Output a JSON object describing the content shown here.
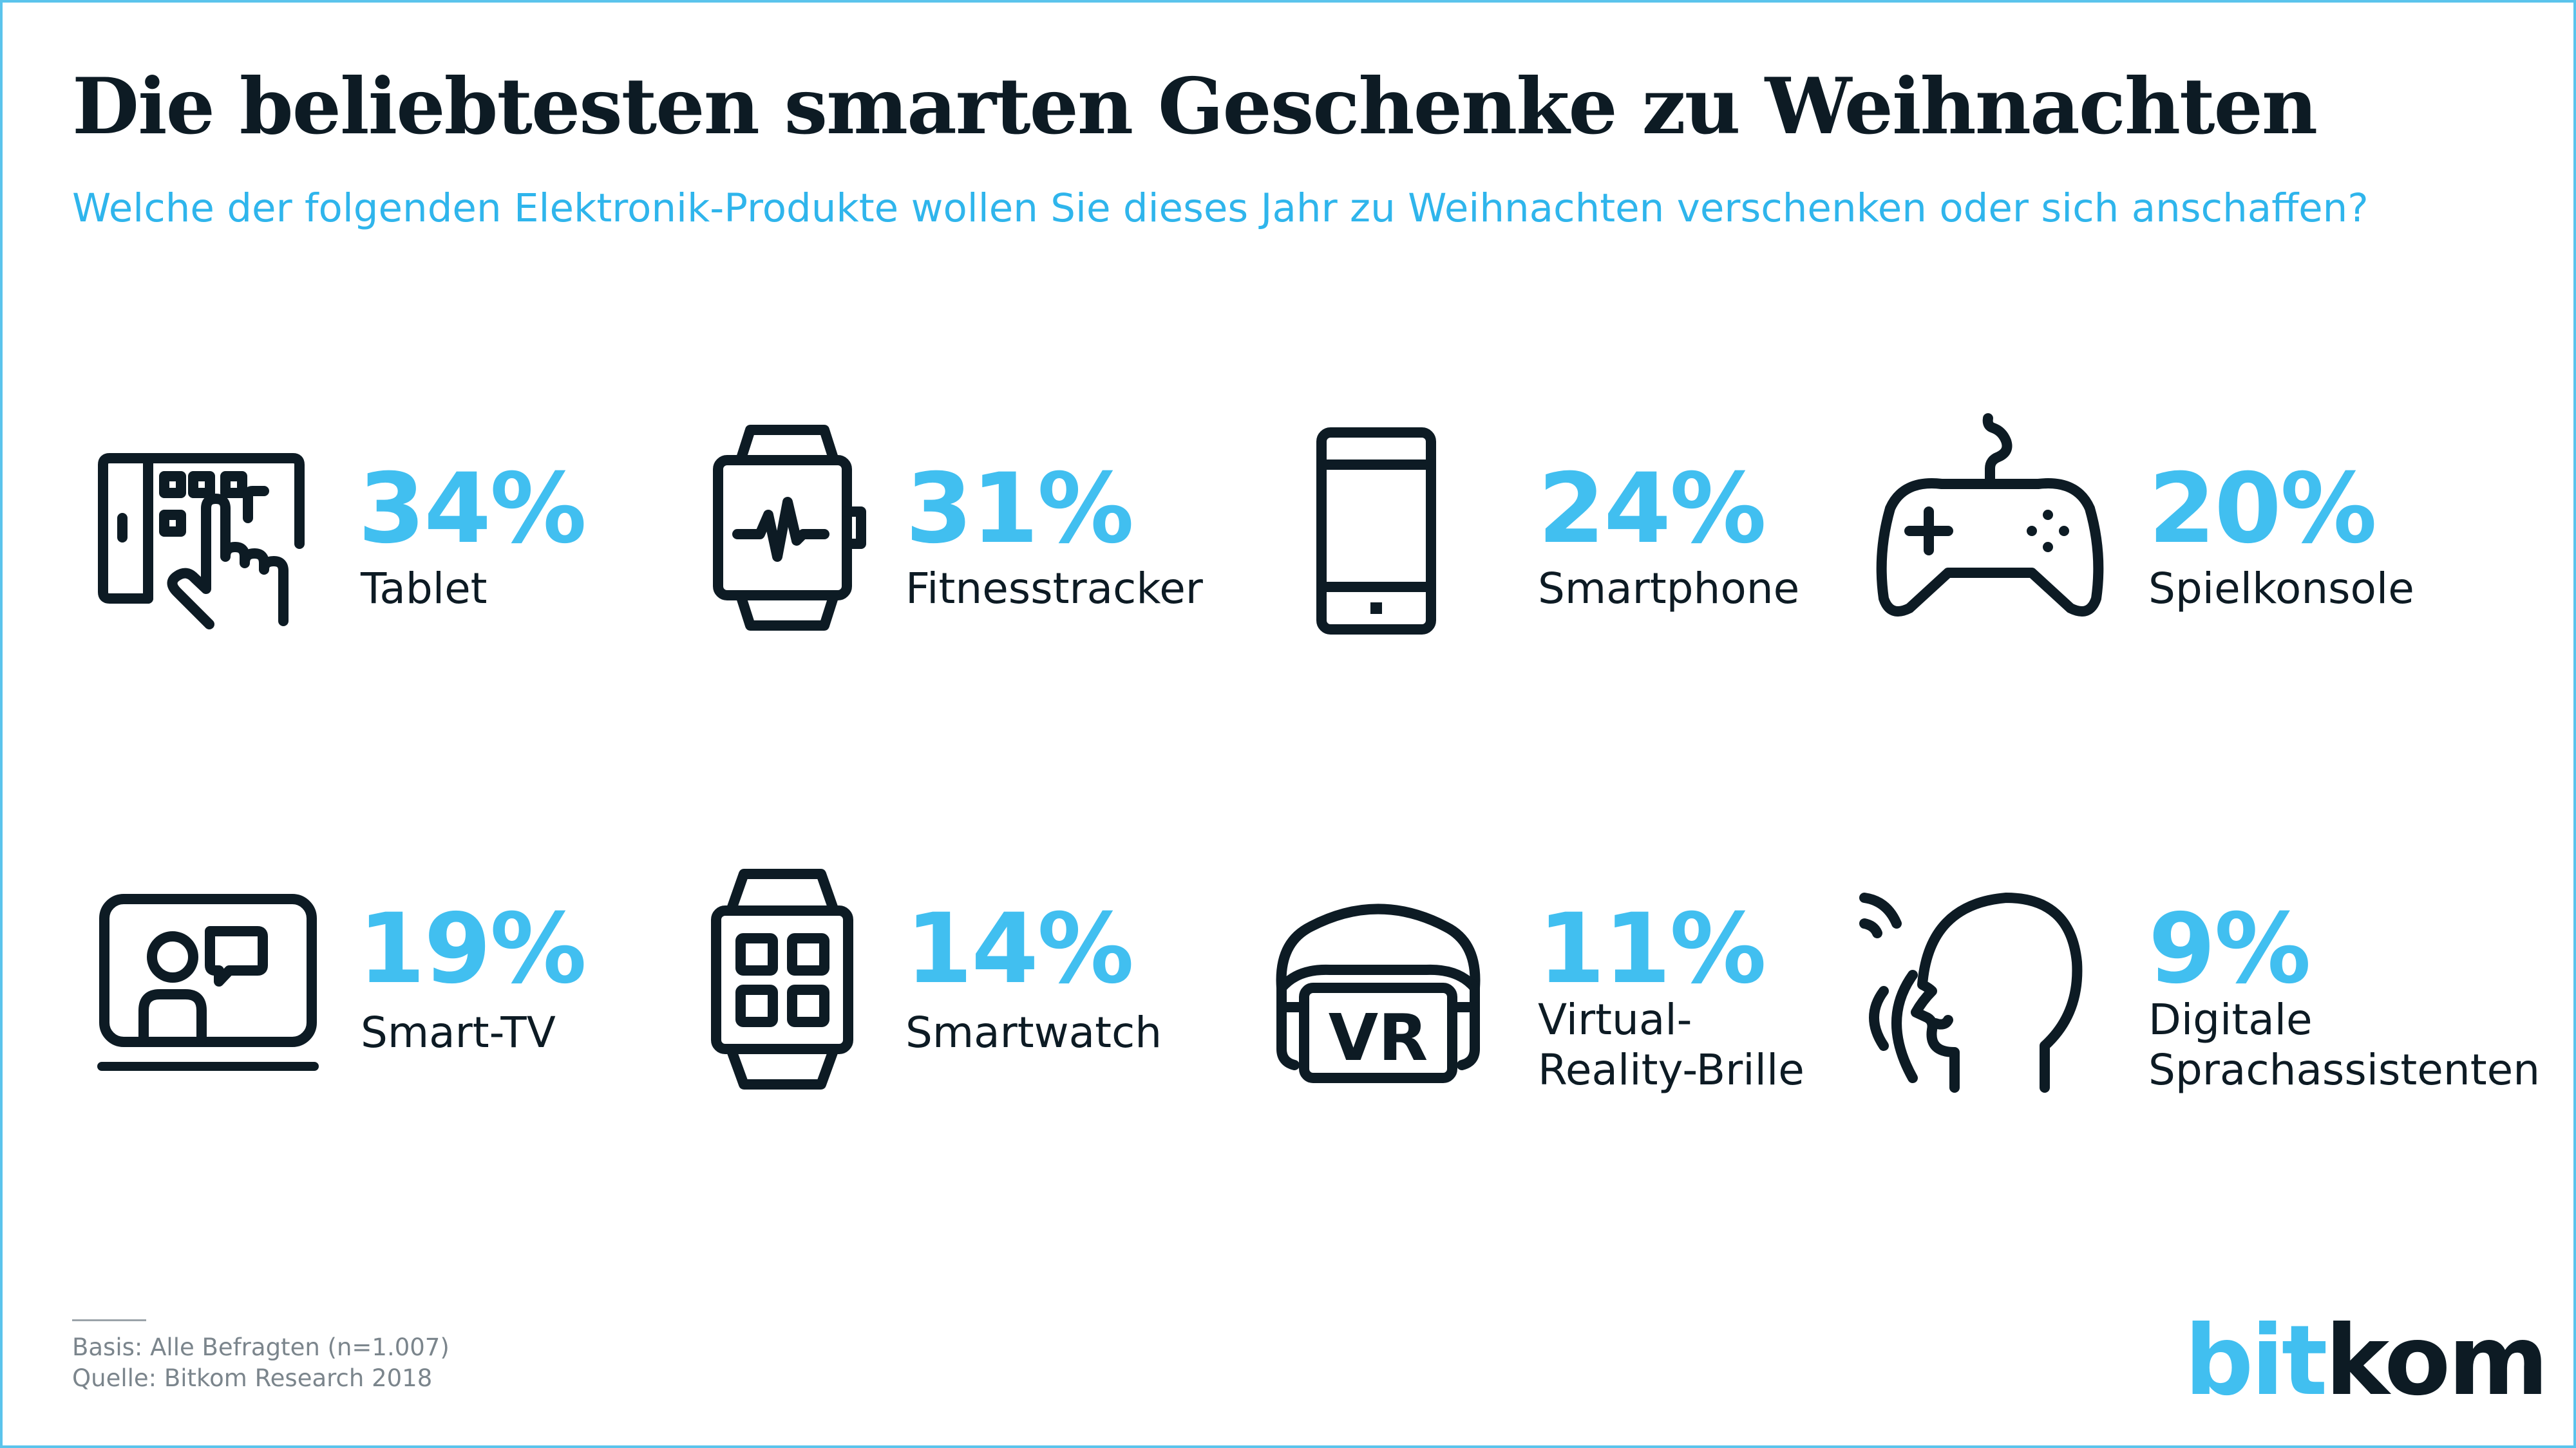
{
  "title": "Die beliebtesten smarten Geschenke zu Weihnachten",
  "subtitle": "Welche der folgenden Elektronik-Produkte wollen Sie dieses Jahr zu Weihnachten verschenken oder sich anschaffen?",
  "colors": {
    "accent": "#41bff0",
    "text": "#0d1b24",
    "note": "#7b858c",
    "border": "#5bc4ec"
  },
  "items": [
    {
      "value": "34%",
      "label": "Tablet",
      "icon": "tablet-touch-icon"
    },
    {
      "value": "31%",
      "label": "Fitnesstracker",
      "icon": "fitness-tracker-icon"
    },
    {
      "value": "24%",
      "label": "Smartphone",
      "icon": "smartphone-icon"
    },
    {
      "value": "20%",
      "label": "Spielkonsole",
      "icon": "gamepad-icon"
    },
    {
      "value": "19%",
      "label": "Smart-TV",
      "icon": "smart-tv-icon"
    },
    {
      "value": "14%",
      "label": "Smartwatch",
      "icon": "smartwatch-icon"
    },
    {
      "value": "11%",
      "label_line1": "Virtual-",
      "label_line2": "Reality-Brille",
      "icon": "vr-headset-icon",
      "icon_text": "VR"
    },
    {
      "value": "9%",
      "label_line1": "Digitale",
      "label_line2": "Sprachassistenten",
      "icon": "voice-assistant-icon"
    }
  ],
  "footer": {
    "basis": "Basis: Alle Befragten (n=1.007)",
    "source": "Quelle: Bitkom Research 2018"
  },
  "logo": {
    "part1": "bit",
    "part2": "kom"
  }
}
